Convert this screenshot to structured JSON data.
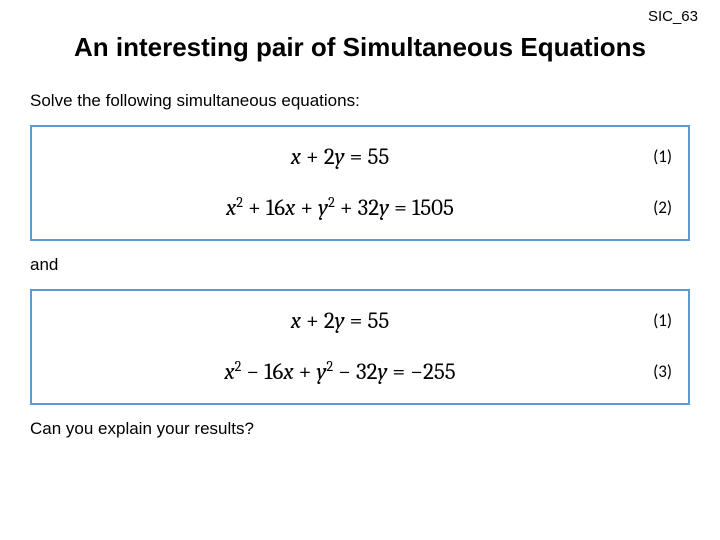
{
  "doc_code": "SIC_63",
  "title": "An interesting pair of Simultaneous Equations",
  "intro": "Solve the following simultaneous equations:",
  "connector": "and",
  "closing": "Can you explain your results?",
  "box_border_color": "#5b9bd5",
  "box1": {
    "rows": [
      {
        "html": "<span class='mi'>x</span> + 2<span class='mi'>y</span> = 55",
        "label": "(1)"
      },
      {
        "html": "<span class='mi'>x</span><sup>2</sup> + 16<span class='mi'>x</span> + <span class='mi'>y</span><sup>2</sup> + 32<span class='mi'>y</span> = 1505",
        "label": "(2)"
      }
    ]
  },
  "box2": {
    "rows": [
      {
        "html": "<span class='mi'>x</span> + 2<span class='mi'>y</span> = 55",
        "label": "(1)"
      },
      {
        "html": "<span class='mi'>x</span><sup>2</sup> − 16<span class='mi'>x</span> + <span class='mi'>y</span><sup>2</sup> − 32<span class='mi'>y</span> = −255",
        "label": "(3)"
      }
    ]
  },
  "fontsizes": {
    "title": 26,
    "body": 17,
    "math": 23,
    "label": 17
  },
  "colors": {
    "text": "#000000",
    "background": "#ffffff",
    "box_border": "#5b9bd5"
  }
}
